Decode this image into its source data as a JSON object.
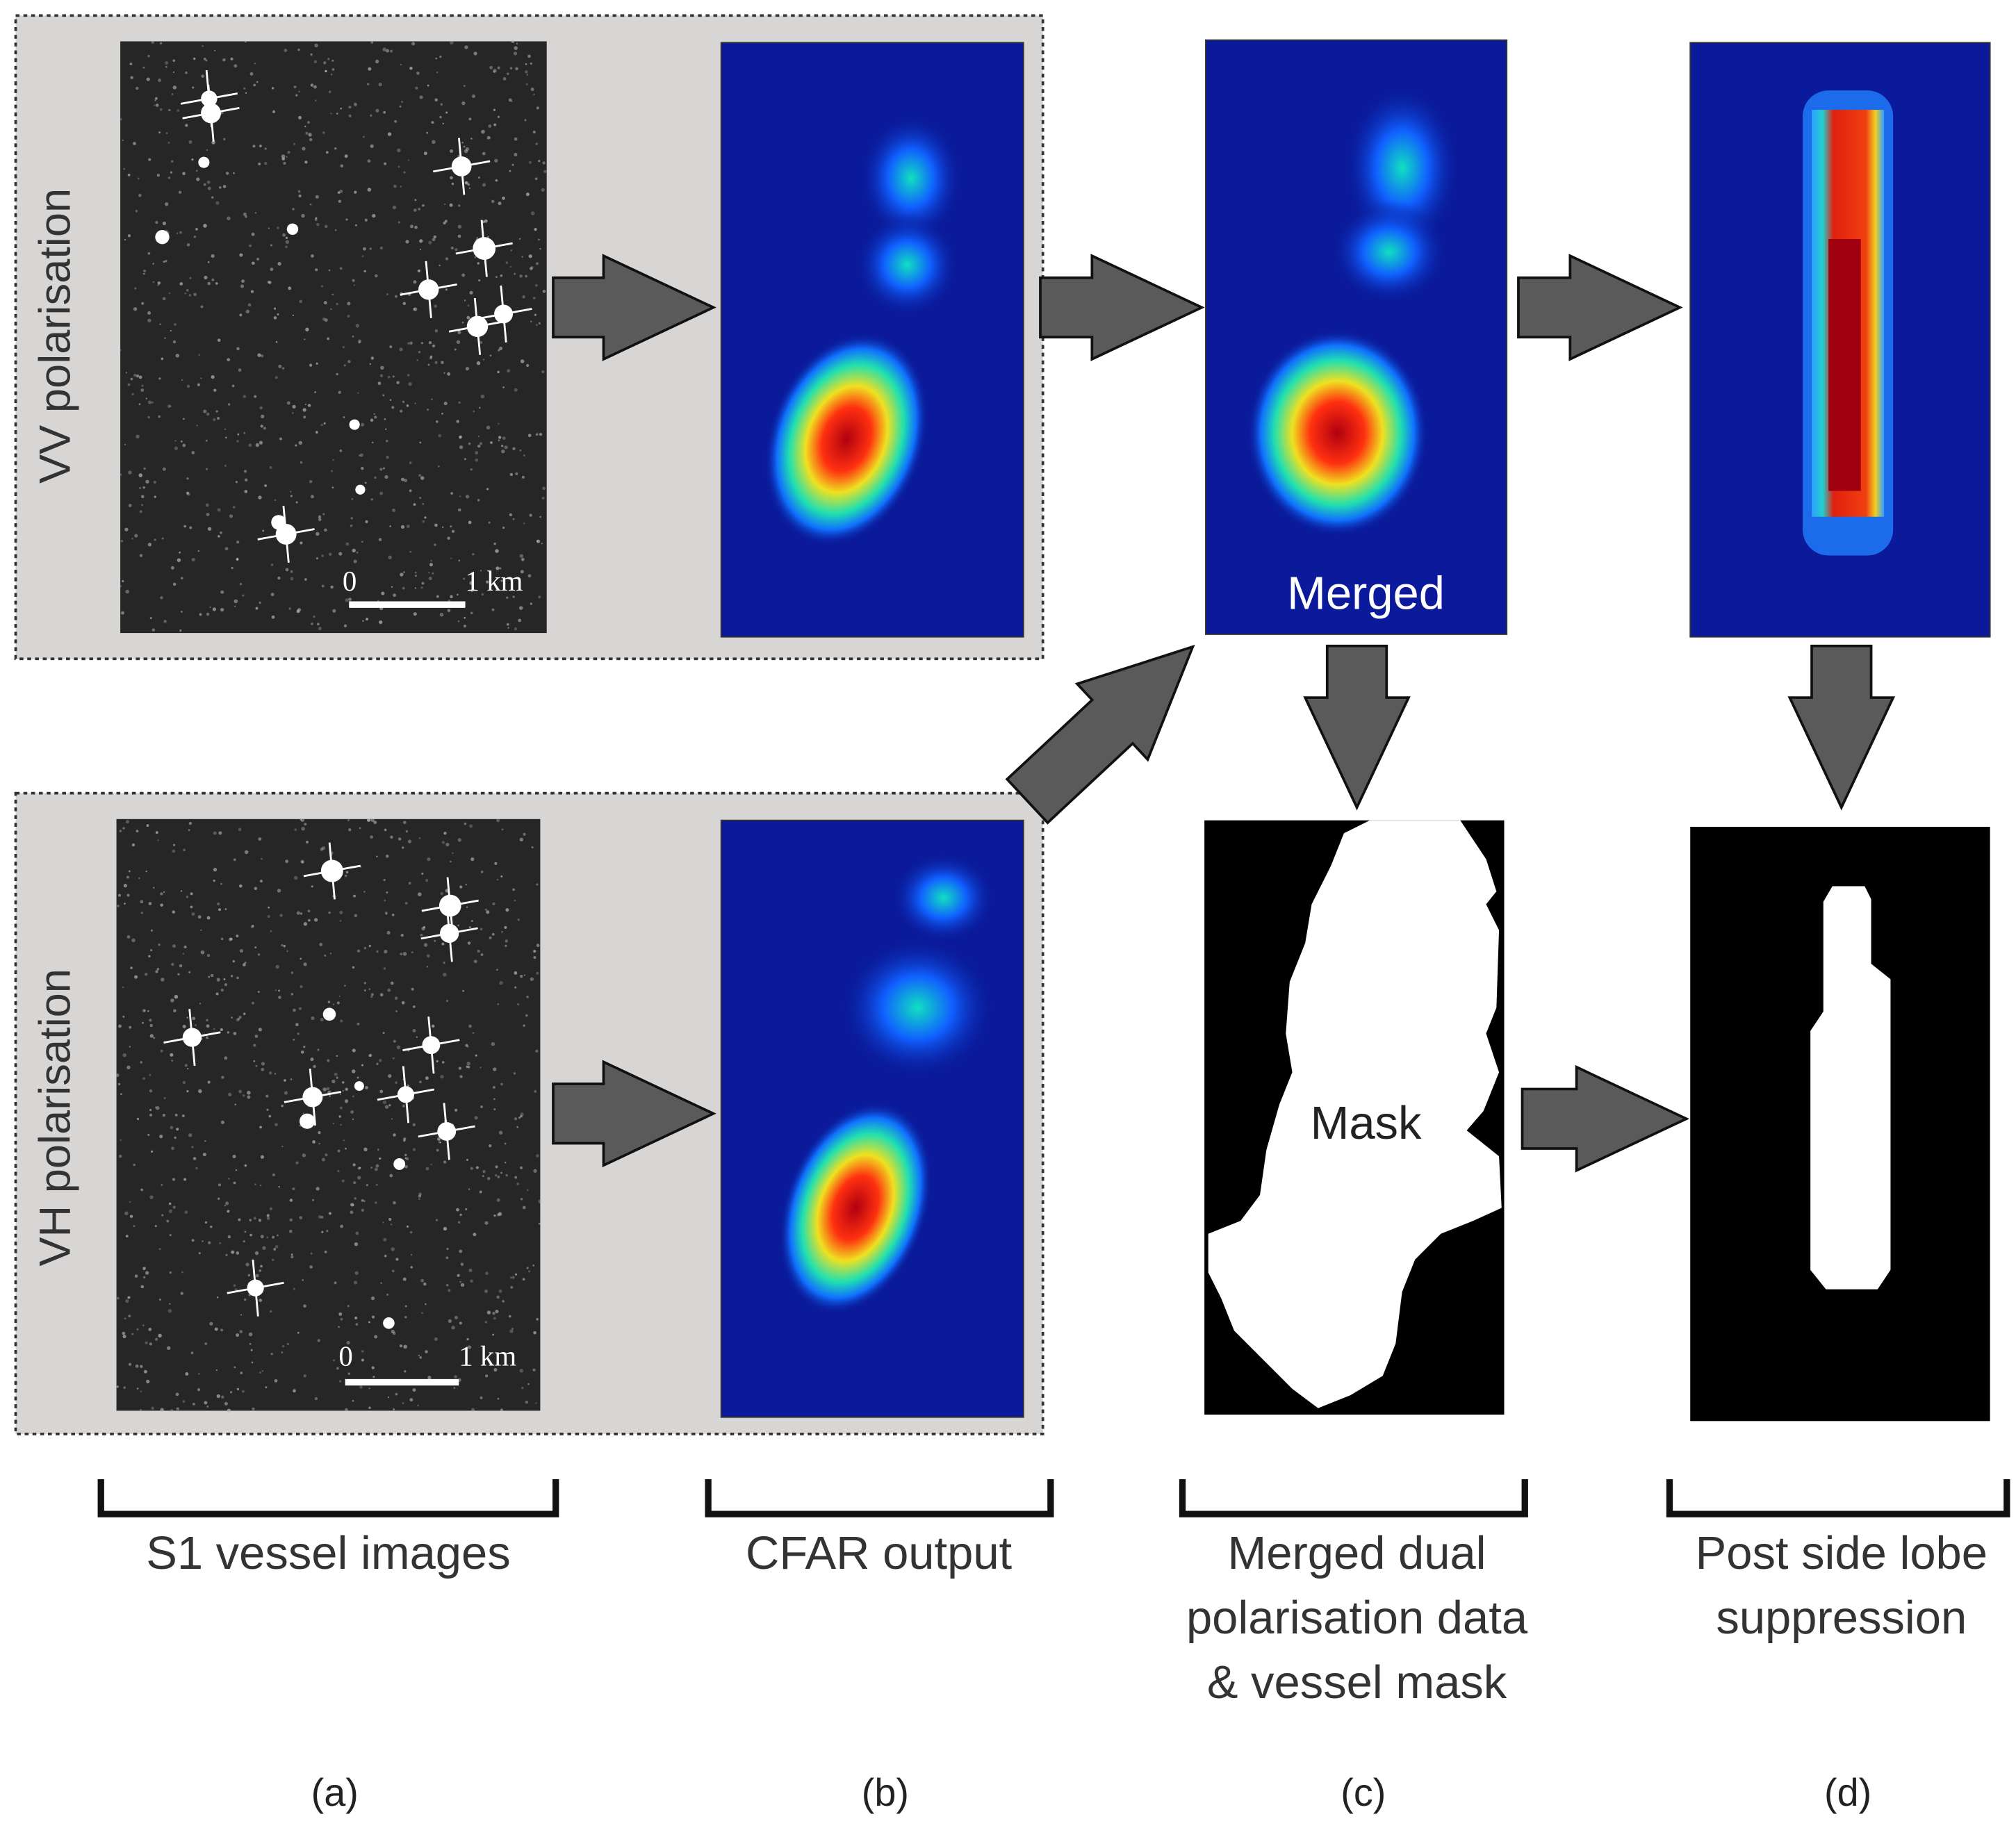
{
  "panels": {
    "vv": {
      "label": "VV polarisation",
      "scale": {
        "start": "0",
        "end": "1 km"
      }
    },
    "vh": {
      "label": "VH polarisation",
      "scale": {
        "start": "0",
        "end": "1 km"
      }
    }
  },
  "overlays": {
    "merged": "Merged",
    "mask": "Mask"
  },
  "columns": [
    {
      "caption": [
        "S1 vessel images"
      ],
      "letter": "(a)"
    },
    {
      "caption": [
        "CFAR output"
      ],
      "letter": "(b)"
    },
    {
      "caption": [
        "Merged dual",
        "polarisation data",
        "& vessel mask"
      ],
      "letter": "(c)"
    },
    {
      "caption": [
        "Post side lobe",
        "suppression"
      ],
      "letter": "(d)"
    }
  ]
}
